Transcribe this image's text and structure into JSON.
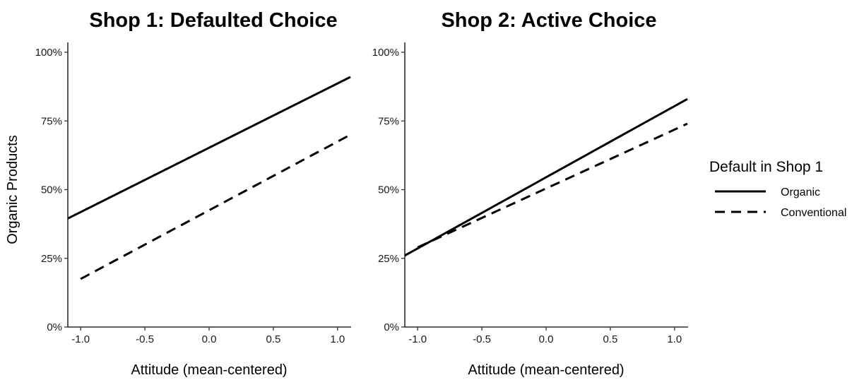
{
  "chart_data": [
    {
      "type": "line",
      "title": "Shop 1: Defaulted Choice",
      "xlabel": "Attitude (mean-centered)",
      "ylabel": "Organic Products",
      "xlim": [
        -1.1,
        1.1
      ],
      "ylim": [
        0,
        1
      ],
      "x_ticks": [
        "-1.0",
        "-0.5",
        "0.0",
        "0.5",
        "1.0"
      ],
      "y_ticks": [
        "0%",
        "25%",
        "50%",
        "75%",
        "100%"
      ],
      "grid": false,
      "series": [
        {
          "name": "Organic",
          "x": [
            -1.1,
            1.1
          ],
          "y": [
            0.395,
            0.91
          ]
        },
        {
          "name": "Conventional",
          "x": [
            -1.0,
            1.1
          ],
          "y": [
            0.175,
            0.7
          ]
        }
      ]
    },
    {
      "type": "line",
      "title": "Shop 2: Active Choice",
      "xlabel": "Attitude (mean-centered)",
      "ylabel": "",
      "xlim": [
        -1.1,
        1.1
      ],
      "ylim": [
        0,
        1
      ],
      "x_ticks": [
        "-1.0",
        "-0.5",
        "0.0",
        "0.5",
        "1.0"
      ],
      "y_ticks": [
        "0%",
        "25%",
        "50%",
        "75%",
        "100%"
      ],
      "grid": false,
      "series": [
        {
          "name": "Organic",
          "x": [
            -1.1,
            1.1
          ],
          "y": [
            0.26,
            0.83
          ]
        },
        {
          "name": "Conventional",
          "x": [
            -1.0,
            1.1
          ],
          "y": [
            0.29,
            0.74
          ]
        }
      ]
    }
  ],
  "legend": {
    "title": "Default in Shop 1",
    "placement": "right",
    "items": [
      {
        "label": "Organic",
        "linetype": "solid"
      },
      {
        "label": "Conventional",
        "linetype": "dashed"
      }
    ]
  }
}
